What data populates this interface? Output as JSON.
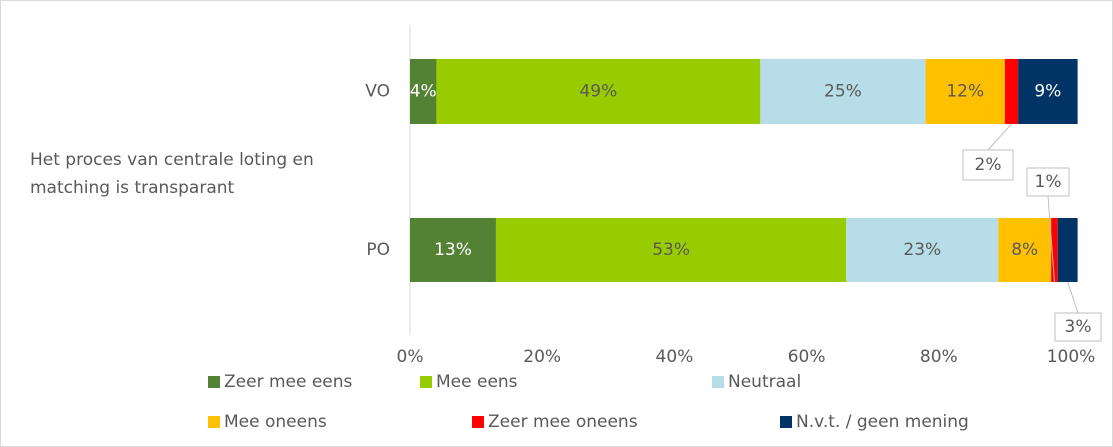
{
  "chart_data": {
    "type": "stacked_barh",
    "group_label": [
      "Het proces van centrale loting en",
      "matching is transparant"
    ],
    "categories": [
      "VO",
      "PO"
    ],
    "series": [
      {
        "name": "Zeer mee eens",
        "color": "#548235",
        "values": [
          4,
          13
        ],
        "value_labels": [
          "4%",
          "13%"
        ]
      },
      {
        "name": "Mee eens",
        "color": "#99cc00",
        "values": [
          49,
          53
        ],
        "value_labels": [
          "49%",
          "53%"
        ]
      },
      {
        "name": "Neutraal",
        "color": "#b7dee8",
        "values": [
          25,
          23
        ],
        "value_labels": [
          "25%",
          "23%"
        ]
      },
      {
        "name": "Mee oneens",
        "color": "#ffc000",
        "values": [
          12,
          8
        ],
        "value_labels": [
          "12%",
          "8%"
        ]
      },
      {
        "name": "Zeer mee oneens",
        "color": "#ff0000",
        "values": [
          2,
          1
        ],
        "value_labels": [
          "2%",
          "1%"
        ]
      },
      {
        "name": "N.v.t. / geen mening",
        "color": "#003366",
        "values": [
          9,
          3
        ],
        "value_labels": [
          "9%",
          "3%"
        ]
      }
    ],
    "xlim": [
      0,
      100
    ],
    "xticks": [
      {
        "value": 0,
        "label": "0%"
      },
      {
        "value": 20,
        "label": "20%"
      },
      {
        "value": 40,
        "label": "40%"
      },
      {
        "value": 60,
        "label": "60%"
      },
      {
        "value": 80,
        "label": "80%"
      },
      {
        "value": 100,
        "label": "100%"
      }
    ],
    "legend": "bottom"
  }
}
